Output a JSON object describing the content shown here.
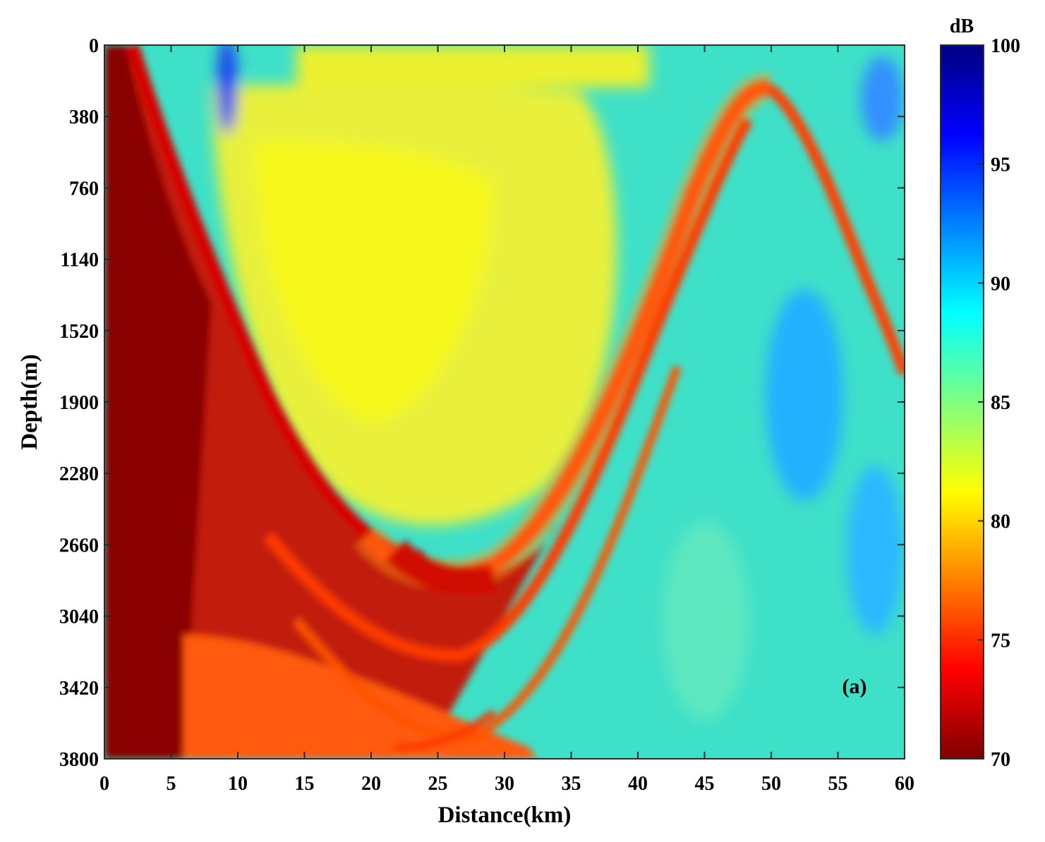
{
  "chart_data": {
    "type": "heatmap",
    "title": "",
    "xlabel": "Distance(km)",
    "ylabel": "Depth(m)",
    "xlim": [
      0,
      60
    ],
    "ylim": [
      3800,
      0
    ],
    "x_ticks": [
      0,
      5,
      10,
      15,
      20,
      25,
      30,
      35,
      40,
      45,
      50,
      55,
      60
    ],
    "x_tick_labels": [
      "0",
      "5",
      "10",
      "15",
      "20",
      "25",
      "30",
      "35",
      "40",
      "45",
      "50",
      "55",
      "60"
    ],
    "y_ticks": [
      0,
      380,
      760,
      1140,
      1520,
      1900,
      2280,
      2660,
      3040,
      3420,
      3800
    ],
    "y_tick_labels": [
      "0",
      "380",
      "760",
      "1140",
      "1520",
      "1900",
      "2280",
      "2660",
      "3040",
      "3420",
      "3800"
    ],
    "colorbar": {
      "label": "dB",
      "range": [
        70,
        100
      ],
      "ticks": [
        70,
        75,
        80,
        85,
        90,
        95,
        100
      ],
      "tick_labels": [
        "70",
        "75",
        "80",
        "85",
        "90",
        "95",
        "100"
      ],
      "colormap": "jet-reversed",
      "colors": [
        "#800000",
        "#ff0000",
        "#ff8000",
        "#ffff00",
        "#80ff80",
        "#00ffff",
        "#0080ff",
        "#0000ff",
        "#000080"
      ]
    },
    "grid": false,
    "annotation": "(a)",
    "features": {
      "caustic_upper_left": [
        [
          2,
          0
        ],
        [
          5,
          380
        ],
        [
          8,
          1000
        ],
        [
          12,
          1600
        ],
        [
          16,
          2100
        ],
        [
          20,
          2500
        ],
        [
          25,
          2700
        ]
      ],
      "main_arc": [
        [
          25,
          2760
        ],
        [
          30,
          2690
        ],
        [
          35,
          2300
        ],
        [
          40,
          1700
        ],
        [
          45,
          950
        ],
        [
          48,
          400
        ],
        [
          50,
          230
        ]
      ],
      "second_arc": [
        [
          52,
          300
        ],
        [
          55,
          800
        ],
        [
          58,
          1500
        ],
        [
          60,
          1800
        ]
      ],
      "lower_ray_arc": [
        [
          10,
          3000
        ],
        [
          18,
          3450
        ],
        [
          25,
          3530
        ],
        [
          32,
          3300
        ],
        [
          38,
          2600
        ],
        [
          44,
          1500
        ],
        [
          48,
          500
        ]
      ]
    }
  }
}
